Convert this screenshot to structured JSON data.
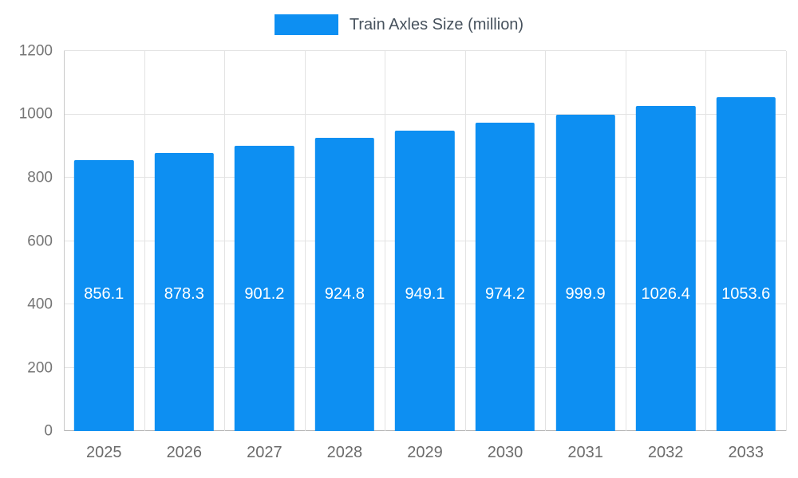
{
  "chart_data": {
    "type": "bar",
    "title": "Train Axles Size (million)",
    "categories": [
      "2025",
      "2026",
      "2027",
      "2028",
      "2029",
      "2030",
      "2031",
      "2032",
      "2033"
    ],
    "values": [
      856.1,
      878.3,
      901.2,
      924.8,
      949.1,
      974.2,
      999.9,
      1026.4,
      1053.6
    ],
    "value_labels": [
      "856.1",
      "878.3",
      "901.2",
      "924.8",
      "949.1",
      "974.2",
      "999.9",
      "1026.4",
      "1053.6"
    ],
    "ylim": [
      0,
      1200
    ],
    "yticks": [
      0,
      200,
      400,
      600,
      800,
      1000,
      1200
    ],
    "ytick_labels": [
      "0",
      "200",
      "400",
      "600",
      "800",
      "1000",
      "1200"
    ],
    "legend_position": "top-center",
    "grid": true,
    "colors": {
      "bar": "#0d8ff2",
      "bar_value_text": "#ffffff",
      "axis_text": "#757575",
      "legend_text": "#47525d",
      "gridline": "#e3e3e3",
      "background": "#ffffff"
    }
  }
}
